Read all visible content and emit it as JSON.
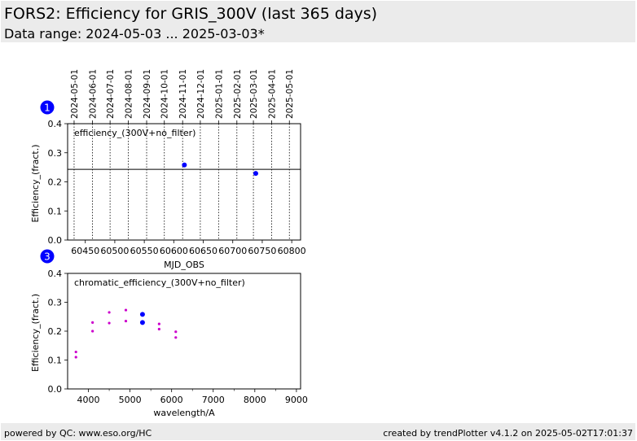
{
  "header": {
    "title": "FORS2: Efficiency for GRIS_300V (last 365 days)",
    "subtitle": "Data range: 2024-05-03 ... 2025-03-03*"
  },
  "footer": {
    "left": "powered by QC: www.eso.org/HC",
    "right": "created by trendPlotter v4.1.2 on 2025-05-02T17:01:37"
  },
  "colors": {
    "points": "#0000ff",
    "chromatic_small": "#cc00cc",
    "badge": "#0000ff"
  },
  "chart_data": [
    {
      "type": "scatter",
      "badge": "1",
      "annotation": "efficiency_(300V+no_filter)",
      "xlabel": "MJD_OBS",
      "ylabel": "Efficiency_(fract.)",
      "xlim": [
        60420,
        60815
      ],
      "ylim": [
        0,
        0.4
      ],
      "xticks": [
        60450,
        60500,
        60550,
        60600,
        60650,
        60700,
        60750,
        60800
      ],
      "yticks": [
        "0.0",
        "0.1",
        "0.2",
        "0.3",
        "0.4"
      ],
      "top_date_ticks": [
        {
          "label": "2024-05-01",
          "mjd": 60431
        },
        {
          "label": "2024-06-01",
          "mjd": 60462
        },
        {
          "label": "2024-07-01",
          "mjd": 60492
        },
        {
          "label": "2024-08-01",
          "mjd": 60523
        },
        {
          "label": "2024-09-01",
          "mjd": 60554
        },
        {
          "label": "2024-10-01",
          "mjd": 60584
        },
        {
          "label": "2024-11-01",
          "mjd": 60615
        },
        {
          "label": "2024-12-01",
          "mjd": 60645
        },
        {
          "label": "2025-01-01",
          "mjd": 60676
        },
        {
          "label": "2025-02-01",
          "mjd": 60707
        },
        {
          "label": "2025-03-01",
          "mjd": 60735
        },
        {
          "label": "2025-04-01",
          "mjd": 60766
        },
        {
          "label": "2025-05-01",
          "mjd": 60796
        }
      ],
      "reference_line": 0.243,
      "grid": "vertical dotted at date ticks",
      "points": [
        {
          "x": 60618,
          "y": 0.258
        },
        {
          "x": 60739,
          "y": 0.229
        }
      ]
    },
    {
      "type": "scatter",
      "badge": "3",
      "annotation": "chromatic_efficiency_(300V+no_filter)",
      "xlabel": "wavelength/A",
      "ylabel": "Efficiency_(fract.)",
      "xlim": [
        3500,
        9100
      ],
      "ylim": [
        0,
        0.4
      ],
      "xticks": [
        4000,
        5000,
        6000,
        7000,
        8000,
        9000
      ],
      "xticks_minor": [
        4500,
        5500,
        6500,
        7500,
        8500
      ],
      "yticks": [
        "0.0",
        "0.1",
        "0.2",
        "0.3",
        "0.4"
      ],
      "series": [
        {
          "style": "small",
          "points": [
            {
              "x": 3700,
              "y": 0.128
            },
            {
              "x": 3700,
              "y": 0.11
            },
            {
              "x": 4100,
              "y": 0.23
            },
            {
              "x": 4100,
              "y": 0.2
            },
            {
              "x": 4500,
              "y": 0.265
            },
            {
              "x": 4500,
              "y": 0.228
            },
            {
              "x": 4900,
              "y": 0.273
            },
            {
              "x": 4900,
              "y": 0.235
            },
            {
              "x": 5700,
              "y": 0.225
            },
            {
              "x": 5700,
              "y": 0.207
            },
            {
              "x": 6100,
              "y": 0.198
            },
            {
              "x": 6100,
              "y": 0.178
            }
          ]
        },
        {
          "style": "large",
          "points": [
            {
              "x": 5300,
              "y": 0.258
            },
            {
              "x": 5300,
              "y": 0.23
            }
          ]
        }
      ]
    }
  ]
}
